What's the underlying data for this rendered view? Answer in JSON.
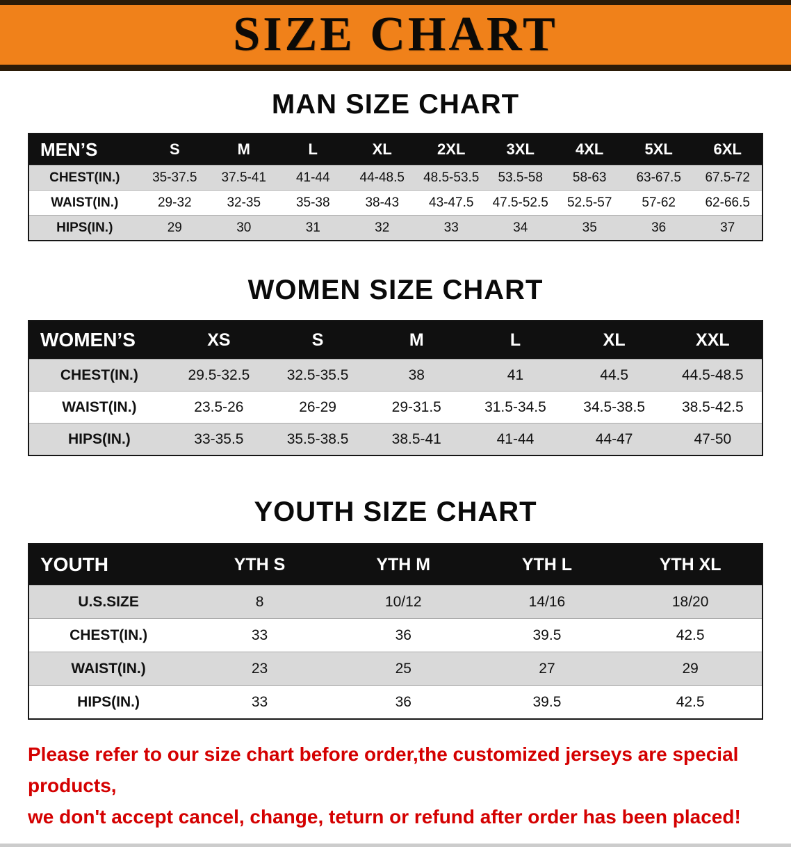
{
  "banner": {
    "title": "SIZE CHART",
    "bg_color": "#f0811a",
    "edge_color": "#2b1b08"
  },
  "sections": [
    {
      "heading": "MAN SIZE CHART",
      "table": {
        "corner": "MEN’S",
        "columns": [
          "S",
          "M",
          "L",
          "XL",
          "2XL",
          "3XL",
          "4XL",
          "5XL",
          "6XL"
        ],
        "rows": [
          {
            "label": "CHEST(IN.)",
            "values": [
              "35-37.5",
              "37.5-41",
              "41-44",
              "44-48.5",
              "48.5-53.5",
              "53.5-58",
              "58-63",
              "63-67.5",
              "67.5-72"
            ]
          },
          {
            "label": "WAIST(IN.)",
            "values": [
              "29-32",
              "32-35",
              "35-38",
              "38-43",
              "43-47.5",
              "47.5-52.5",
              "52.5-57",
              "57-62",
              "62-66.5"
            ]
          },
          {
            "label": "HIPS(IN.)",
            "values": [
              "29",
              "30",
              "31",
              "32",
              "33",
              "34",
              "35",
              "36",
              "37"
            ]
          }
        ]
      }
    },
    {
      "heading": "WOMEN SIZE CHART",
      "table": {
        "corner": "WOMEN’S",
        "columns": [
          "XS",
          "S",
          "M",
          "L",
          "XL",
          "XXL"
        ],
        "rows": [
          {
            "label": "CHEST(IN.)",
            "values": [
              "29.5-32.5",
              "32.5-35.5",
              "38",
              "41",
              "44.5",
              "44.5-48.5"
            ]
          },
          {
            "label": "WAIST(IN.)",
            "values": [
              "23.5-26",
              "26-29",
              "29-31.5",
              "31.5-34.5",
              "34.5-38.5",
              "38.5-42.5"
            ]
          },
          {
            "label": "HIPS(IN.)",
            "values": [
              "33-35.5",
              "35.5-38.5",
              "38.5-41",
              "41-44",
              "44-47",
              "47-50"
            ]
          }
        ]
      }
    },
    {
      "heading": "YOUTH SIZE CHART",
      "table": {
        "corner": "YOUTH",
        "columns": [
          "YTH S",
          "YTH M",
          "YTH L",
          "YTH XL"
        ],
        "rows": [
          {
            "label": "U.S.SIZE",
            "values": [
              "8",
              "10/12",
              "14/16",
              "18/20"
            ]
          },
          {
            "label": "CHEST(IN.)",
            "values": [
              "33",
              "36",
              "39.5",
              "42.5"
            ]
          },
          {
            "label": "WAIST(IN.)",
            "values": [
              "23",
              "25",
              "27",
              "29"
            ]
          },
          {
            "label": "HIPS(IN.)",
            "values": [
              "33",
              "36",
              "39.5",
              "42.5"
            ]
          }
        ]
      }
    }
  ],
  "footer": {
    "line1": "Please refer to our size chart before order,the customized jerseys are special products,",
    "line2": "we don't accept cancel, change, teturn or refund after order has been placed!",
    "text_color": "#d40000"
  }
}
